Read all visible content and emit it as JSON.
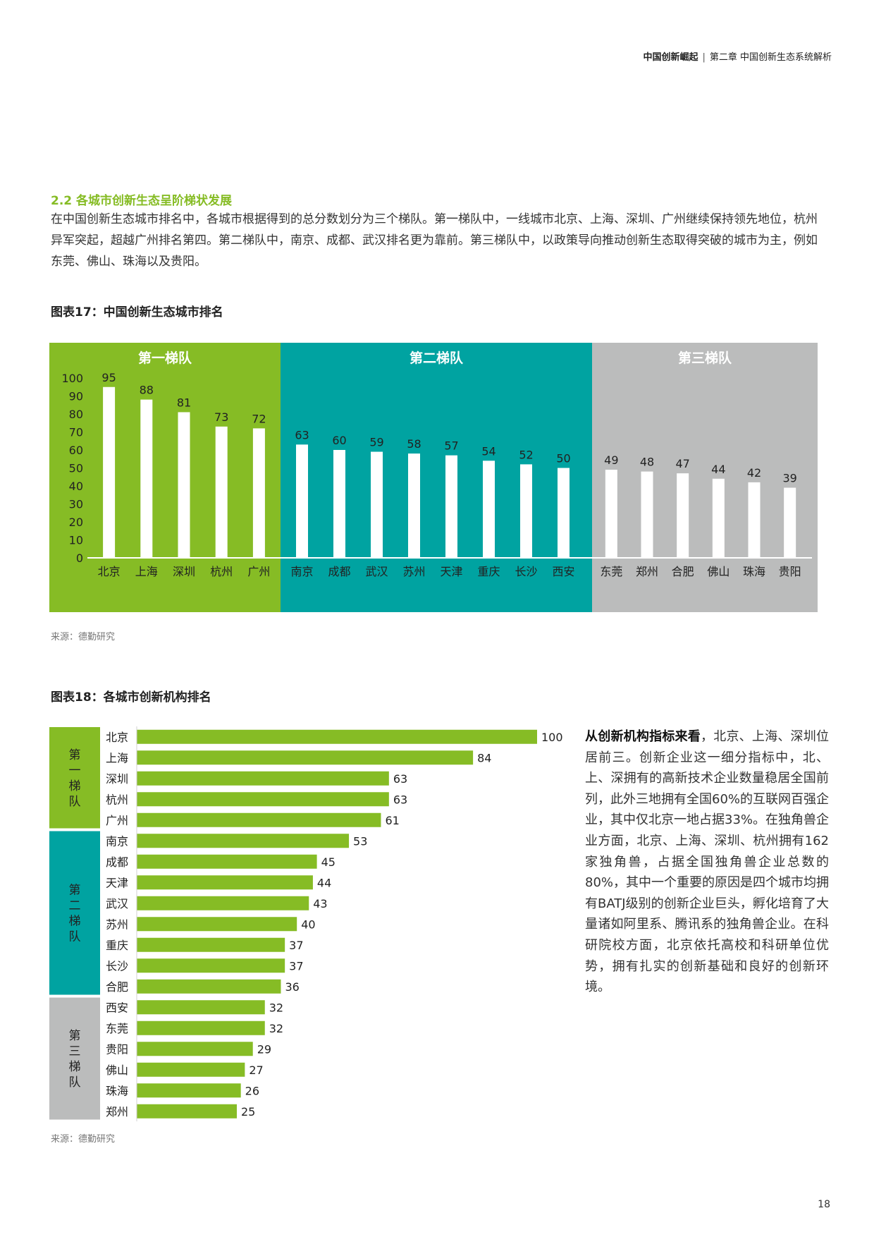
{
  "header": {
    "book": "中国创新崛起",
    "chapter": "第二章 中国创新生态系统解析"
  },
  "section": {
    "title": "2.2 各城市创新生态呈阶梯状发展",
    "paragraph": "在中国创新生态城市排名中，各城市根据得到的总分数划分为三个梯队。第一梯队中，一线城市北京、上海、深圳、广州继续保持领先地位，杭州异军突起，超越广州排名第四。第二梯队中，南京、成都、武汉排名更为靠前。第三梯队中，以政策导向推动创新生态取得突破的城市为主，例如东莞、佛山、珠海以及贵阳。"
  },
  "figure17": {
    "title": "图表17：中国创新生态城市排名",
    "source": "来源：德勤研究"
  },
  "figure18": {
    "title": "图表18：各城市创新机构排名",
    "source": "来源：德勤研究"
  },
  "side_text": {
    "lead": "从创新机构指标来看",
    "body": "，北京、上海、深圳位居前三。创新企业这一细分指标中，北、上、深拥有的高新技术企业数量稳居全国前列，此外三地拥有全国60%的互联网百强企业，其中仅北京一地占据33%。在独角兽企业方面，北京、上海、深圳、杭州拥有162家独角兽，占据全国独角兽企业总数的80%，其中一个重要的原因是四个城市均拥有BATJ级别的创新企业巨头，孵化培育了大量诸如阿里系、腾讯系的独角兽企业。在科研院校方面，北京依托高校和科研单位优势，拥有扎实的创新基础和良好的创新环境。"
  },
  "page_number": "18",
  "colors": {
    "green": "#86bc25",
    "teal": "#00a3a1",
    "gray": "#bbbcbc",
    "white": "#ffffff"
  },
  "chart_data": [
    {
      "type": "bar",
      "title": "图表17：中国创新生态城市排名",
      "ylim": [
        0,
        100
      ],
      "yticks": [
        0,
        10,
        20,
        30,
        40,
        50,
        60,
        70,
        80,
        90,
        100
      ],
      "tiers": [
        {
          "name": "第一梯队",
          "color": "#86bc25",
          "categories": [
            "北京",
            "上海",
            "深圳",
            "杭州",
            "广州"
          ],
          "values": [
            95,
            88,
            81,
            73,
            72
          ]
        },
        {
          "name": "第二梯队",
          "color": "#00a3a1",
          "categories": [
            "南京",
            "成都",
            "武汉",
            "苏州",
            "天津",
            "重庆",
            "长沙",
            "西安"
          ],
          "values": [
            63,
            60,
            59,
            58,
            57,
            54,
            52,
            50
          ]
        },
        {
          "name": "第三梯队",
          "color": "#bbbcbc",
          "categories": [
            "东莞",
            "郑州",
            "合肥",
            "佛山",
            "珠海",
            "贵阳"
          ],
          "values": [
            49,
            48,
            47,
            44,
            42,
            39
          ]
        }
      ]
    },
    {
      "type": "bar",
      "orientation": "horizontal",
      "title": "图表18：各城市创新机构排名",
      "xlim": [
        0,
        100
      ],
      "tiers": [
        {
          "name": "第一梯队",
          "color": "#86bc25",
          "categories": [
            "北京",
            "上海",
            "深圳",
            "杭州",
            "广州"
          ],
          "values": [
            100,
            84,
            63,
            63,
            61
          ]
        },
        {
          "name": "第二梯队",
          "color": "#00a3a1",
          "categories": [
            "南京",
            "成都",
            "天津",
            "武汉",
            "苏州",
            "重庆",
            "长沙",
            "合肥"
          ],
          "values": [
            53,
            45,
            44,
            43,
            40,
            37,
            37,
            36
          ]
        },
        {
          "name": "第三梯队",
          "color": "#bbbcbc",
          "categories": [
            "西安",
            "东莞",
            "贵阳",
            "佛山",
            "珠海",
            "郑州"
          ],
          "values": [
            32,
            32,
            29,
            27,
            26,
            25
          ]
        }
      ]
    }
  ]
}
